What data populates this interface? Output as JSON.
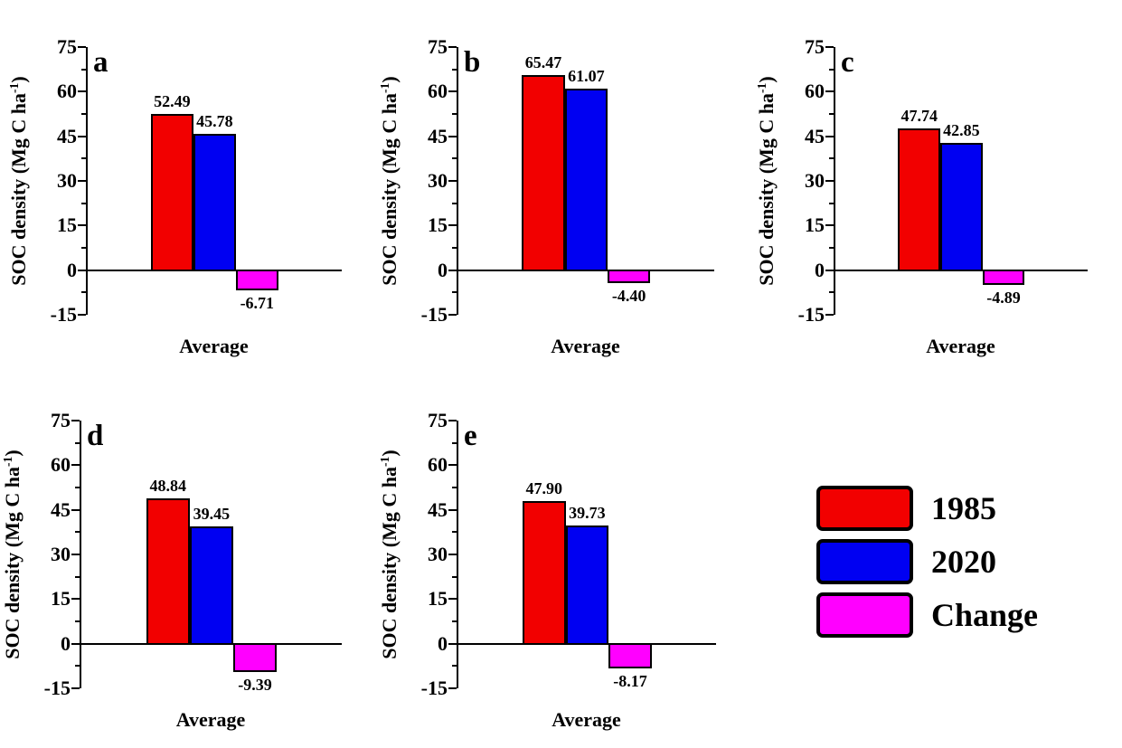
{
  "figure": {
    "background": "#ffffff"
  },
  "axis": {
    "ylabel_prefix": "SOC density (Mg C ha",
    "ylabel_sup": "-1",
    "ylabel_suffix": ")",
    "ylabel_full": "SOC density (Mg C ha⁻¹)",
    "yticks": [
      75,
      60,
      45,
      30,
      15,
      0,
      -15
    ],
    "xlabel": "Average"
  },
  "legend": {
    "items": [
      {
        "label": "1985",
        "color": "#f20000"
      },
      {
        "label": "2020",
        "color": "#0000f2"
      },
      {
        "label": "Change",
        "color": "#ff00ff"
      }
    ]
  },
  "chart_data": [
    {
      "type": "bar",
      "panel": "a",
      "categories": [
        "Average"
      ],
      "series": [
        {
          "name": "1985",
          "values": [
            52.49
          ],
          "color": "#f20000"
        },
        {
          "name": "2020",
          "values": [
            45.78
          ],
          "color": "#0000f2"
        },
        {
          "name": "Change",
          "values": [
            -6.71
          ],
          "color": "#ff00ff"
        }
      ],
      "xlabel": "Average",
      "ylabel": "SOC density (Mg C ha⁻¹)",
      "ylim": [
        -15,
        75
      ],
      "ytick_step": 15,
      "grid": false,
      "legend_position": "figure-bottom-right"
    },
    {
      "type": "bar",
      "panel": "b",
      "categories": [
        "Average"
      ],
      "series": [
        {
          "name": "1985",
          "values": [
            65.47
          ],
          "color": "#f20000"
        },
        {
          "name": "2020",
          "values": [
            61.07
          ],
          "color": "#0000f2"
        },
        {
          "name": "Change",
          "values": [
            -4.4
          ],
          "color": "#ff00ff"
        }
      ],
      "xlabel": "Average",
      "ylabel": "SOC density (Mg C ha⁻¹)",
      "ylim": [
        -15,
        75
      ],
      "ytick_step": 15,
      "grid": false,
      "legend_position": "figure-bottom-right"
    },
    {
      "type": "bar",
      "panel": "c",
      "categories": [
        "Average"
      ],
      "series": [
        {
          "name": "1985",
          "values": [
            47.74
          ],
          "color": "#f20000"
        },
        {
          "name": "2020",
          "values": [
            42.85
          ],
          "color": "#0000f2"
        },
        {
          "name": "Change",
          "values": [
            -4.89
          ],
          "color": "#ff00ff"
        }
      ],
      "xlabel": "Average",
      "ylabel": "SOC density (Mg C ha⁻¹)",
      "ylim": [
        -15,
        75
      ],
      "ytick_step": 15,
      "grid": false,
      "legend_position": "figure-bottom-right"
    },
    {
      "type": "bar",
      "panel": "d",
      "categories": [
        "Average"
      ],
      "series": [
        {
          "name": "1985",
          "values": [
            48.84
          ],
          "color": "#f20000"
        },
        {
          "name": "2020",
          "values": [
            39.45
          ],
          "color": "#0000f2"
        },
        {
          "name": "Change",
          "values": [
            -9.39
          ],
          "color": "#ff00ff"
        }
      ],
      "xlabel": "Average",
      "ylabel": "SOC density (Mg C ha⁻¹)",
      "ylim": [
        -15,
        75
      ],
      "ytick_step": 15,
      "grid": false,
      "legend_position": "figure-bottom-right"
    },
    {
      "type": "bar",
      "panel": "e",
      "categories": [
        "Average"
      ],
      "series": [
        {
          "name": "1985",
          "values": [
            47.9
          ],
          "color": "#f20000"
        },
        {
          "name": "2020",
          "values": [
            39.73
          ],
          "color": "#0000f2"
        },
        {
          "name": "Change",
          "values": [
            -8.17
          ],
          "color": "#ff00ff"
        }
      ],
      "xlabel": "Average",
      "ylabel": "SOC density (Mg C ha⁻¹)",
      "ylim": [
        -15,
        75
      ],
      "ytick_step": 15,
      "grid": false,
      "legend_position": "figure-bottom-right"
    }
  ]
}
